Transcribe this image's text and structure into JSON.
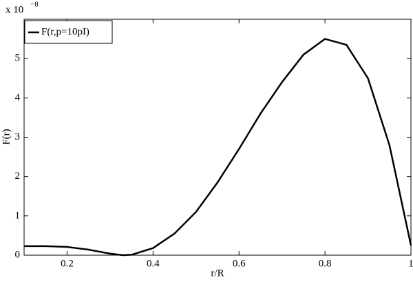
{
  "chart_data": {
    "type": "line",
    "x_label": "r/R",
    "y_label": "F(r)",
    "y_multiplier": "x 10",
    "y_exponent": "−8",
    "x": [
      0.1,
      0.15,
      0.2,
      0.25,
      0.3,
      0.33,
      0.35,
      0.4,
      0.45,
      0.5,
      0.55,
      0.6,
      0.65,
      0.7,
      0.75,
      0.8,
      0.85,
      0.9,
      0.95,
      1.0
    ],
    "series": [
      {
        "name": "F(r,p=10pI)",
        "color": "#000000",
        "values": [
          0.23,
          0.23,
          0.21,
          0.14,
          0.04,
          0.0,
          0.01,
          0.18,
          0.55,
          1.1,
          1.85,
          2.7,
          3.6,
          4.4,
          5.1,
          5.5,
          5.35,
          4.5,
          2.8,
          0.25
        ]
      }
    ],
    "xlim": [
      0.1,
      1
    ],
    "xticks": [
      0.2,
      0.4,
      0.6,
      0.8,
      1
    ],
    "ylim": [
      0,
      6
    ],
    "yticks": [
      0,
      1,
      2,
      3,
      4,
      5
    ],
    "grid": false,
    "legend": "upper left"
  }
}
